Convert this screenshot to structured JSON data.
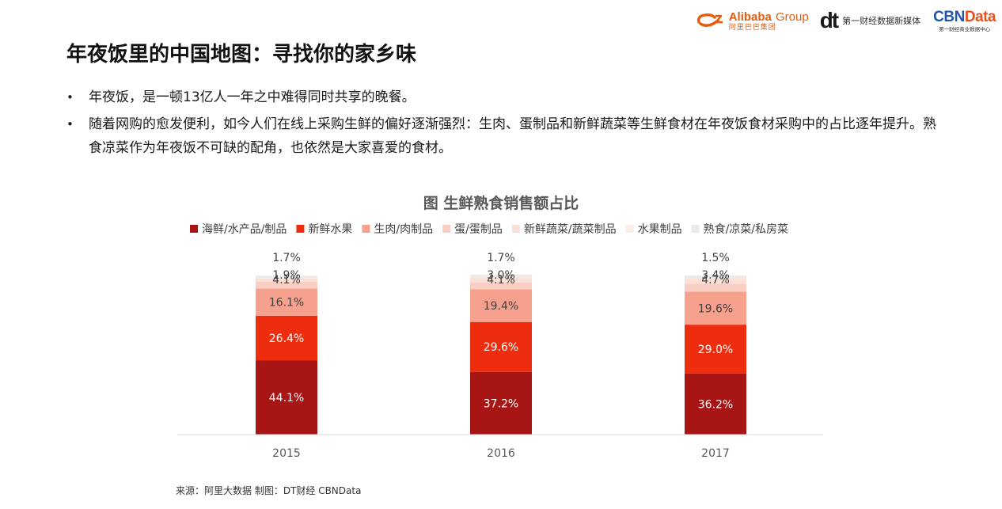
{
  "logos": {
    "alibaba_en": "Alibaba",
    "alibaba_group": "Group",
    "alibaba_cn": "阿里巴巴集团",
    "dt_mark": "dt",
    "dt_text": "第一财经数据新媒体",
    "cbn_main": "CBN",
    "cbn_data": "Data",
    "cbn_sub": "第一财经商业数据中心"
  },
  "page": {
    "title": "年夜饭里的中国地图：寻找你的家乡味",
    "bullets": [
      "年夜饭，是一顿13亿人一年之中难得同时共享的晚餐。",
      "随着网购的愈发便利，如今人们在线上采购生鲜的偏好逐渐强烈：生肉、蛋制品和新鲜蔬菜等生鲜食材在年夜饭食材采购中的占比逐年提升。熟食凉菜作为年夜饭不可缺的配角，也依然是大家喜爱的食材。"
    ],
    "bullet_marker": "•",
    "source": "来源：阿里大数据   制图：DT财经   CBNData"
  },
  "chart_data": {
    "type": "bar",
    "stacked": true,
    "title": "图 生鲜熟食销售额占比",
    "categories": [
      "2015",
      "2016",
      "2017"
    ],
    "series": [
      {
        "name": "海鲜/水产品/制品",
        "color": "#a81515",
        "label_color": "#ffffff",
        "values": [
          44.1,
          37.2,
          36.2
        ],
        "labels": [
          "44.1%",
          "37.2%",
          "36.2%"
        ]
      },
      {
        "name": "新鲜水果",
        "color": "#ee2d0e",
        "label_color": "#ffffff",
        "values": [
          26.4,
          29.6,
          29.0
        ],
        "labels": [
          "26.4%",
          "29.6%",
          "29.0%"
        ]
      },
      {
        "name": "生肉/肉制品",
        "color": "#f6a08e",
        "label_color": "#404040",
        "values": [
          16.1,
          19.4,
          19.6
        ],
        "labels": [
          "16.1%",
          "19.4%",
          "19.6%"
        ]
      },
      {
        "name": "蛋/蛋制品",
        "color": "#f9cfc4",
        "label_color": "#404040",
        "values": [
          4.1,
          4.1,
          4.7
        ],
        "labels": [
          "4.1%",
          "4.1%",
          "4.7%"
        ]
      },
      {
        "name": "新鲜蔬菜/蔬菜制品",
        "color": "#fbe0d8",
        "label_color": "#404040",
        "values": [
          1.9,
          3.0,
          3.4
        ],
        "labels": [
          "1.9%",
          "3.0%",
          "3.4%"
        ]
      },
      {
        "name": "水果制品",
        "color": "#fdeee9",
        "label_color": "#404040",
        "values": [
          0,
          0,
          0
        ],
        "labels": [
          "",
          "",
          ""
        ]
      },
      {
        "name": "熟食/凉菜/私房菜",
        "color": "#eeeae8",
        "label_color": "#404040",
        "values": [
          1.7,
          1.7,
          1.5
        ],
        "labels": [
          "1.7%",
          "1.7%",
          "1.5%"
        ]
      }
    ],
    "ylim": [
      0,
      100
    ],
    "legend_position": "top",
    "grid": false
  }
}
